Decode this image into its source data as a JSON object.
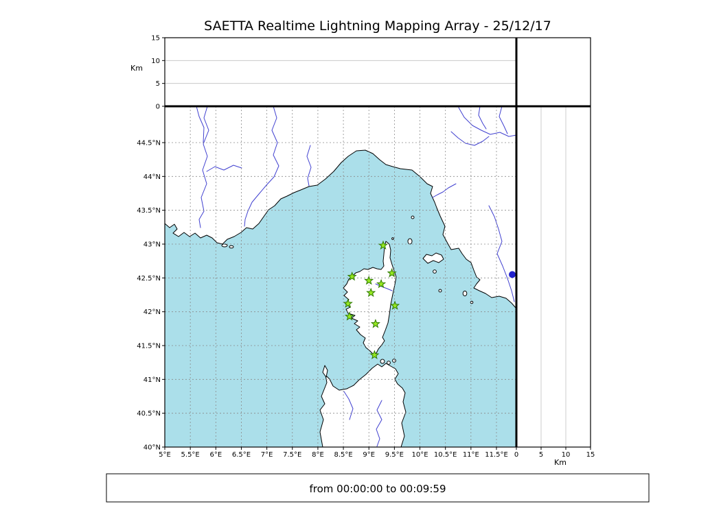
{
  "title": "SAETTA Realtime Lightning Mapping Array - 25/12/17",
  "footer": {
    "time_range": "from 00:00:00 to 00:09:59"
  },
  "altitude_axis": {
    "unit": "Km",
    "ticks": [
      0,
      5,
      10,
      15
    ],
    "range": [
      0,
      15
    ]
  },
  "map": {
    "lon_ticks": [
      {
        "value": 5,
        "label": "5°E"
      },
      {
        "value": 5.5,
        "label": "5.5°E"
      },
      {
        "value": 6,
        "label": "6°E"
      },
      {
        "value": 6.5,
        "label": "6.5°E"
      },
      {
        "value": 7,
        "label": "7°E"
      },
      {
        "value": 7.5,
        "label": "7.5°E"
      },
      {
        "value": 8,
        "label": "8°E"
      },
      {
        "value": 8.5,
        "label": "8.5°E"
      },
      {
        "value": 9,
        "label": "9°E"
      },
      {
        "value": 9.5,
        "label": "9.5°E"
      },
      {
        "value": 10,
        "label": "10°E"
      },
      {
        "value": 10.5,
        "label": "10.5°E"
      },
      {
        "value": 11,
        "label": "11°E"
      },
      {
        "value": 11.5,
        "label": "11.5°E"
      }
    ],
    "lat_ticks": [
      {
        "value": 40,
        "label": "40°N"
      },
      {
        "value": 40.5,
        "label": "40.5°N"
      },
      {
        "value": 41,
        "label": "41°N"
      },
      {
        "value": 41.5,
        "label": "41.5°N"
      },
      {
        "value": 42,
        "label": "42°N"
      },
      {
        "value": 42.5,
        "label": "42.5°N"
      },
      {
        "value": 43,
        "label": "43°N"
      },
      {
        "value": 43.5,
        "label": "43.5°N"
      },
      {
        "value": 44,
        "label": "44°N"
      },
      {
        "value": 44.5,
        "label": "44.5°N"
      }
    ]
  },
  "stations": [
    {
      "lon": 9.28,
      "lat": 42.98
    },
    {
      "lon": 8.67,
      "lat": 42.52
    },
    {
      "lon": 9.0,
      "lat": 42.46
    },
    {
      "lon": 9.45,
      "lat": 42.57
    },
    {
      "lon": 9.24,
      "lat": 42.41
    },
    {
      "lon": 9.04,
      "lat": 42.28
    },
    {
      "lon": 8.59,
      "lat": 42.12
    },
    {
      "lon": 9.51,
      "lat": 42.09
    },
    {
      "lon": 8.62,
      "lat": 41.93
    },
    {
      "lon": 9.13,
      "lat": 41.82
    },
    {
      "lon": 9.11,
      "lat": 41.36
    }
  ],
  "markers": {
    "blue_dot": {
      "lon": 11.81,
      "lat": 42.55
    }
  },
  "colors": {
    "sea": "#ABDFEA",
    "land": "#FFFFFF",
    "coastline": "#000000",
    "graticule": "#8A8A8A",
    "river": "#4040D0",
    "station_fill": "#97E822",
    "station_edge": "#2E7A00",
    "blue_dot": "#2121CC"
  }
}
